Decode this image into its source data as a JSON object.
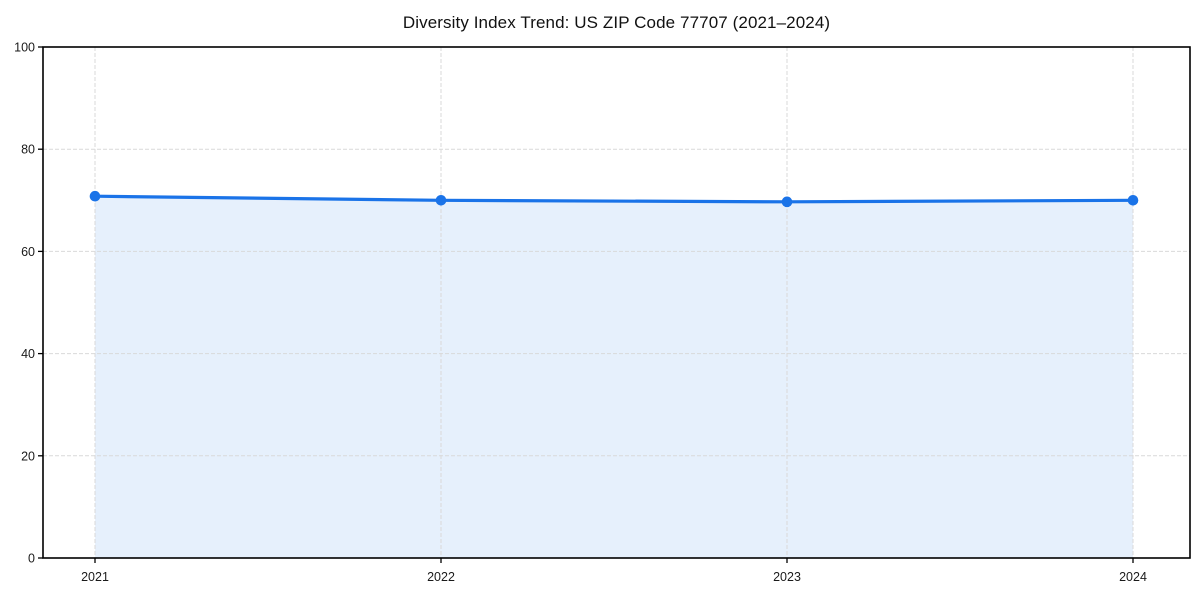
{
  "chart_data": {
    "type": "line",
    "area_fill": true,
    "title": "Diversity Index Trend: US ZIP Code 77707 (2021–2024)",
    "categories": [
      "2021",
      "2022",
      "2023",
      "2024"
    ],
    "series": [
      {
        "name": "Diversity Index",
        "values": [
          70.8,
          70.0,
          69.7,
          70.0
        ]
      }
    ],
    "xlabel": "",
    "ylabel": "",
    "ylim": [
      0,
      100
    ],
    "yticks": [
      0,
      20,
      40,
      60,
      80,
      100
    ],
    "grid": "dashed, horizontal and vertical",
    "legend_position": "none",
    "marker": "circle",
    "colors": {
      "line": "#1a73e8",
      "marker": "#1a73e8",
      "fill": "#1a73e8",
      "fill_opacity": 0.11,
      "grid": "#d9d9d9",
      "spine": "#000000",
      "tick_label": "#1a1a1a",
      "title": "#111111",
      "background": "#ffffff"
    }
  }
}
